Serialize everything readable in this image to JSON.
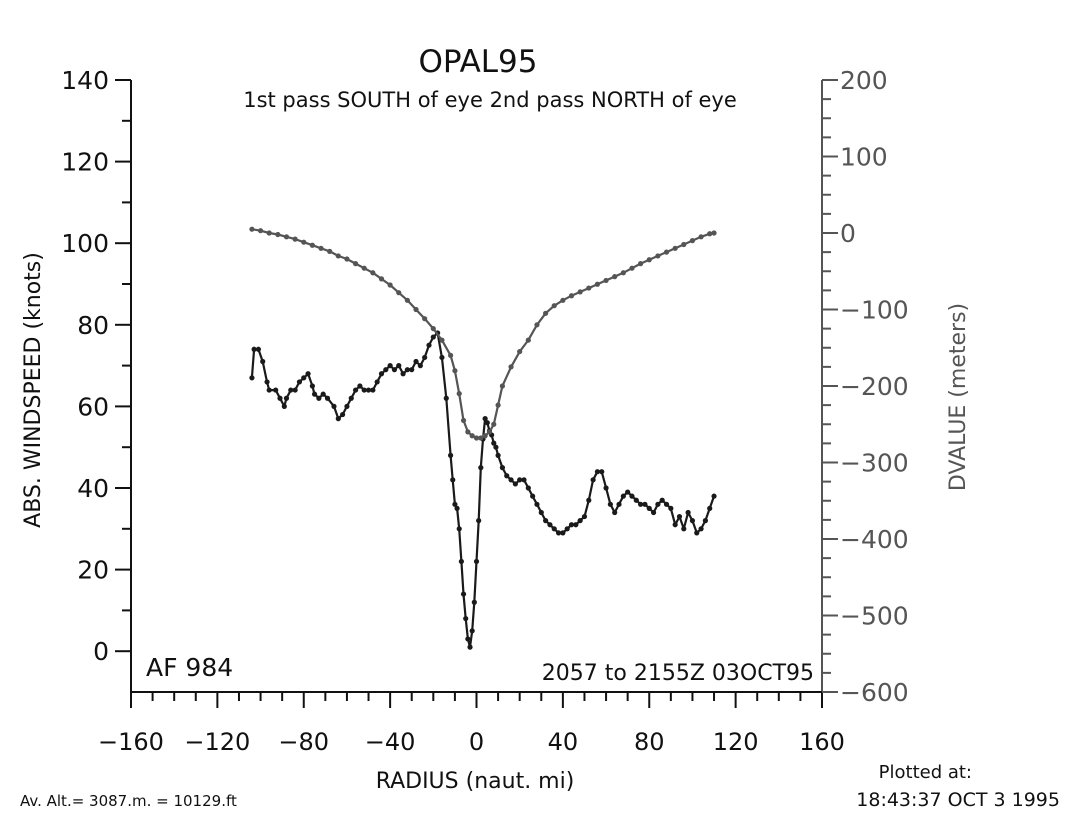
{
  "chart_data": {
    "type": "line",
    "title": "OPAL95",
    "subtitle": "1st pass SOUTH of eye 2nd pass NORTH of eye",
    "xlabel": "RADIUS (naut. mi)",
    "ylabel": "ABS. WINDSPEED (knots)",
    "y2label": "DVALUE (meters)",
    "xlim": [
      -160,
      160
    ],
    "ylim": [
      -10,
      140
    ],
    "y2lim": [
      -600,
      200
    ],
    "xticks": [
      "−160",
      "−120",
      "−80",
      "−40",
      "0",
      "40",
      "80",
      "120",
      "160"
    ],
    "yticks": [
      "0",
      "20",
      "40",
      "60",
      "80",
      "100",
      "120",
      "140"
    ],
    "y2ticks": [
      "−600",
      "−500",
      "−400",
      "−300",
      "−200",
      "−100",
      "0",
      "100",
      "200"
    ],
    "flight_label": "AF 984",
    "time_label": "2057 to 2155Z 03OCT95",
    "grid": false,
    "series": [
      {
        "axis": "left",
        "color": "#1a1a1a",
        "x": [
          -104,
          -103,
          -101,
          -99,
          -97,
          -96,
          -93,
          -91,
          -89,
          -88,
          -86,
          -84,
          -82,
          -80,
          -78,
          -76,
          -75,
          -73,
          -71,
          -69,
          -66,
          -64,
          -62,
          -60,
          -58,
          -56,
          -54,
          -52,
          -50,
          -48,
          -46,
          -44,
          -42,
          -40,
          -38,
          -36,
          -34,
          -32,
          -30,
          -28,
          -26,
          -24,
          -22,
          -20,
          -18,
          -16,
          -14,
          -12,
          -11,
          -10,
          -9,
          -8,
          -7,
          -6,
          -5,
          -4,
          -3,
          -2,
          -1,
          0,
          1,
          2,
          3,
          4,
          5,
          6,
          7,
          8,
          9,
          10,
          12,
          14,
          16,
          18,
          20,
          22,
          24,
          26,
          28,
          30,
          32,
          34,
          36,
          38,
          40,
          42,
          44,
          46,
          48,
          50,
          52,
          54,
          56,
          58,
          60,
          62,
          64,
          66,
          68,
          70,
          72,
          74,
          76,
          78,
          80,
          82,
          84,
          86,
          88,
          90,
          92,
          94,
          96,
          98,
          100,
          102,
          104,
          106,
          108,
          110
        ],
        "y": [
          67,
          74,
          74,
          71,
          66,
          64,
          64,
          62,
          60,
          62,
          64,
          64,
          66,
          67,
          68,
          65,
          63,
          62,
          63,
          62,
          60,
          57,
          58,
          60,
          62,
          64,
          65,
          64,
          64,
          64,
          66,
          68,
          69,
          70,
          69,
          70,
          68,
          69,
          69,
          71,
          70,
          72,
          75,
          77,
          78,
          72,
          62,
          48,
          42,
          36,
          35,
          30,
          22,
          14,
          8,
          3,
          1,
          5,
          12,
          22,
          32,
          45,
          52,
          57,
          56,
          54,
          53,
          51,
          50,
          48,
          45,
          43,
          42,
          41,
          42,
          42,
          40,
          38,
          36,
          34,
          32,
          31,
          30,
          29,
          29,
          30,
          31,
          31,
          32,
          33,
          37,
          42,
          44,
          44,
          40,
          36,
          34,
          36,
          38,
          39,
          38,
          37,
          36,
          36,
          35,
          34,
          36,
          37,
          36,
          35,
          31,
          33,
          30,
          34,
          32,
          29,
          30,
          32,
          35,
          38
        ]
      },
      {
        "axis": "right",
        "color": "#555555",
        "x": [
          -104,
          -100,
          -96,
          -92,
          -88,
          -84,
          -80,
          -76,
          -72,
          -68,
          -64,
          -60,
          -56,
          -52,
          -48,
          -44,
          -40,
          -36,
          -32,
          -28,
          -24,
          -20,
          -16,
          -12,
          -10,
          -8,
          -6,
          -4,
          -2,
          0,
          2,
          4,
          6,
          8,
          10,
          12,
          16,
          20,
          24,
          28,
          32,
          36,
          40,
          44,
          48,
          52,
          56,
          60,
          64,
          68,
          72,
          76,
          80,
          84,
          88,
          92,
          96,
          100,
          104,
          108,
          110
        ],
        "y": [
          5,
          3,
          0,
          -2,
          -5,
          -8,
          -12,
          -16,
          -20,
          -24,
          -30,
          -34,
          -40,
          -46,
          -52,
          -60,
          -68,
          -78,
          -88,
          -100,
          -112,
          -125,
          -140,
          -160,
          -180,
          -210,
          -245,
          -260,
          -265,
          -268,
          -268,
          -265,
          -260,
          -250,
          -225,
          -200,
          -175,
          -155,
          -140,
          -120,
          -105,
          -95,
          -88,
          -82,
          -77,
          -72,
          -67,
          -62,
          -57,
          -52,
          -46,
          -40,
          -35,
          -30,
          -25,
          -20,
          -15,
          -10,
          -5,
          -1,
          0
        ]
      }
    ]
  },
  "footer": {
    "altitude": "Av. Alt.= 3087.m. = 10129.ft",
    "plotted_label": "Plotted at:",
    "plotted_time": "18:43:37 OCT  3 1995"
  }
}
